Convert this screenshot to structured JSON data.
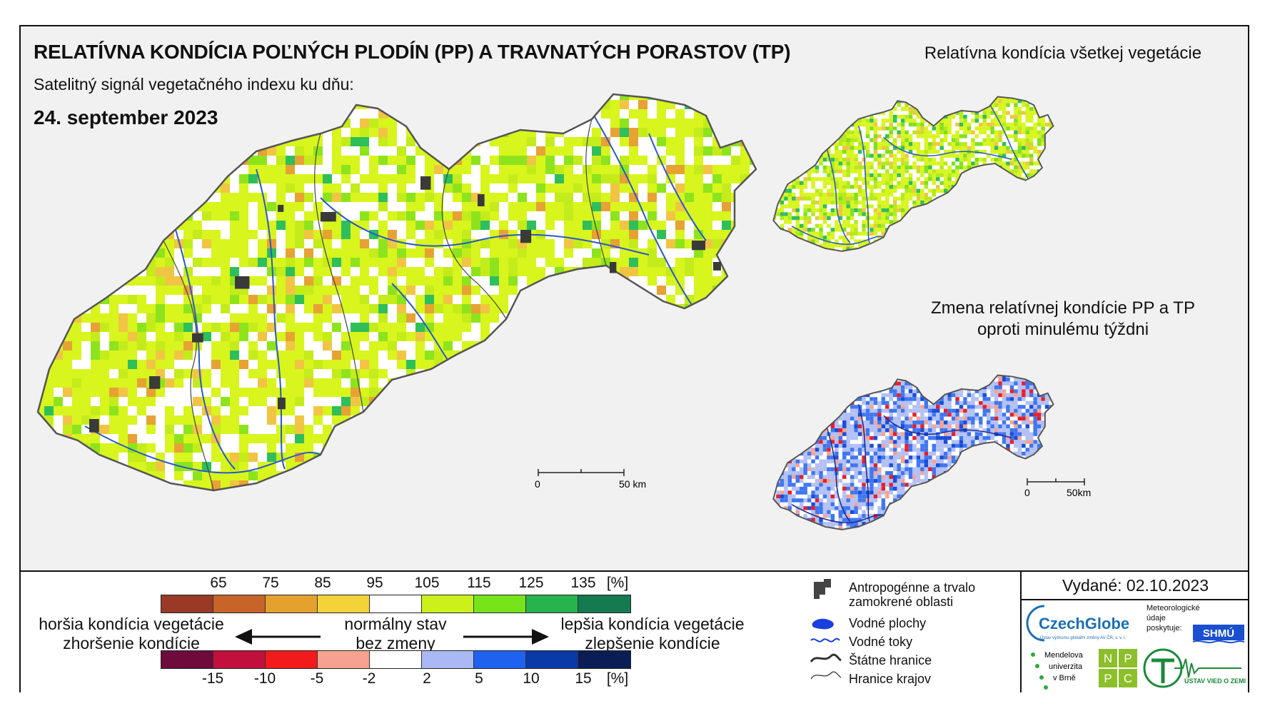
{
  "title": "RELATÍVNA KONDÍCIA POĽNÝCH PLODÍN (PP) A TRAVNATÝCH PORASTOV (TP)",
  "subtitle": "Satelitný signál vegetačného indexu ku dňu:",
  "date": "24. september 2023",
  "side_map_1_title": "Relatívna kondícia všetkej vegetácie",
  "side_map_2_title_line1": "Zmena relatívnej kondície PP a TP",
  "side_map_2_title_line2": "oproti minulému týždni",
  "main_scale": {
    "start": "0",
    "end": "50 km"
  },
  "small_scale": {
    "start": "0",
    "end": "50km"
  },
  "condition_legend": {
    "ticks": [
      "65",
      "75",
      "85",
      "95",
      "105",
      "115",
      "125",
      "135"
    ],
    "unit": "[%]",
    "colors": [
      "#9a3a26",
      "#c8642a",
      "#e5a12e",
      "#f4d23a",
      "#ffffff",
      "#cbf01a",
      "#77e41a",
      "#27b34d",
      "#147a50"
    ]
  },
  "change_legend": {
    "ticks": [
      "-15",
      "-10",
      "-5",
      "-2",
      "2",
      "5",
      "10",
      "15"
    ],
    "unit": "[%]",
    "colors": [
      "#6e0a3c",
      "#c2103c",
      "#f21a1a",
      "#f7a290",
      "#ffffff",
      "#aab8f5",
      "#1f62f0",
      "#0a3aa8",
      "#0a1e55"
    ]
  },
  "arrow_labels": {
    "left_line1": "horšia kondícia vegetácie",
    "left_line2": "zhoršenie kondície",
    "center_line1": "normálny stav",
    "center_line2": "bez zmeny",
    "right_line1": "lepšia kondícia vegetácie",
    "right_line2": "zlepšenie kondície"
  },
  "map_legend": {
    "anthropogenic_line1": "Antropogénne a trvalo",
    "anthropogenic_line2": "zamokrené oblasti",
    "water_areas": "Vodné plochy",
    "water_streams": "Vodné toky",
    "state_borders": "Štátne hranice",
    "region_borders": "Hranice krajov"
  },
  "published": "Vydané: 02.10.2023",
  "logos": {
    "czechglobe": "CzechGlobe",
    "czechglobe_sub": "Ústav výzkumu globální změny AV ČR, v. v. i.",
    "meteo_line1": "Meteorologické",
    "meteo_line2": "údaje",
    "meteo_line3": "poskytuje:",
    "shmu": "SHMÚ",
    "mendel_line1": "Mendelova",
    "mendel_line2": "univerzita",
    "mendel_line3": "v Brně",
    "nppc": [
      "N",
      "P",
      "P",
      "C"
    ],
    "uvz": "ÚSTAV VIED O ZEMI"
  }
}
